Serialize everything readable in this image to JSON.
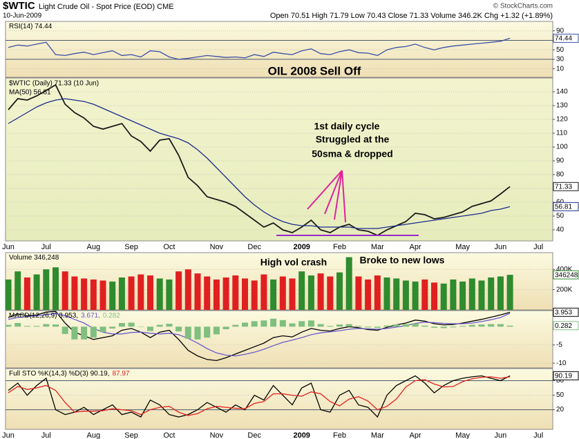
{
  "header": {
    "symbol": "$WTIC",
    "title": "Light Crude Oil - Spot Price (EOD) CME",
    "date": "10-Jun-2009",
    "stats": "Open 70.51 High 71.79 Low 70.43 Close 71.33 Volume 346.2K Chg +1.32 (+1.89%)",
    "credit": "© StockCharts.com"
  },
  "annotations": [
    {
      "text": "OIL 2008 Sell Off",
      "color": "#1530c8"
    },
    {
      "text": "1st daily cycle",
      "color": "#e0209a"
    },
    {
      "text": "Struggled at the",
      "color": "#9a28c8"
    },
    {
      "text": "50sma & dropped",
      "color": "#9a28c8"
    },
    {
      "text": "High vol crash",
      "color": "#e8175d"
    },
    {
      "text": "Broke to new lows",
      "color": "#e8175d"
    }
  ],
  "chart_data": [
    {
      "type": "line",
      "ylim": [
        -8,
        110
      ],
      "yticks": [
        10,
        30,
        50,
        70,
        90
      ],
      "highlight": [
        30,
        70
      ],
      "grid": true,
      "series": [
        {
          "name": "RSI(14) 74.44",
          "color": "#3a4fa8",
          "box": true,
          "values": [
            55,
            60,
            58,
            62,
            66,
            40,
            38,
            42,
            45,
            40,
            44,
            48,
            38,
            40,
            35,
            48,
            46,
            35,
            30,
            32,
            35,
            38,
            36,
            34,
            35,
            33,
            40,
            36,
            45,
            42,
            40,
            48,
            52,
            42,
            40,
            46,
            50,
            44,
            43,
            38,
            50,
            55,
            57,
            62,
            55,
            50,
            55,
            58,
            60,
            62,
            64,
            66,
            68,
            74.44,
            null,
            null,
            null
          ]
        }
      ]
    },
    {
      "type": "line",
      "ylim": [
        32,
        150
      ],
      "yticks": [
        40,
        50,
        60,
        70,
        80,
        90,
        100,
        110,
        120,
        130,
        140
      ],
      "grid": true,
      "legend_rows": true,
      "categories": [
        "Jun",
        null,
        null,
        null,
        "Jul",
        null,
        null,
        null,
        null,
        "Aug",
        null,
        null,
        null,
        "Sep",
        null,
        null,
        null,
        "Oct",
        null,
        null,
        null,
        null,
        "Nov",
        null,
        null,
        null,
        "Dec",
        null,
        null,
        null,
        null,
        "2009",
        null,
        null,
        null,
        "Feb",
        null,
        null,
        null,
        "Mar",
        null,
        null,
        null,
        "Apr",
        null,
        null,
        null,
        null,
        "May",
        null,
        null,
        null,
        "Jun",
        null,
        null,
        null,
        "Jul"
      ],
      "series": [
        {
          "name": "$WTIC (Daily) 71.33 (10 Jun)",
          "color": "#1a1a1a",
          "box": true,
          "values": [
            127,
            135,
            134,
            137,
            141,
            145,
            131,
            125,
            121,
            115,
            113,
            115,
            117,
            108,
            104,
            97,
            105,
            106,
            94,
            78,
            72,
            64,
            62,
            60,
            57,
            52,
            47,
            42,
            45,
            40,
            38,
            42,
            47,
            40,
            38,
            42,
            44,
            40,
            39,
            36,
            40,
            43,
            46,
            52,
            51,
            48,
            49,
            51,
            53,
            57,
            59,
            61,
            66,
            71.33,
            null,
            null,
            null
          ]
        },
        {
          "name": "MA(50) 56.81",
          "color": "#1c2a8c",
          "box": true,
          "values": [
            117,
            121,
            125,
            129,
            132,
            134,
            135,
            134,
            133,
            131,
            128,
            125,
            122,
            119,
            116,
            113,
            110,
            108,
            106,
            103,
            98,
            92,
            85,
            78,
            71,
            64,
            58,
            53,
            49,
            46,
            44,
            43,
            43,
            42,
            42,
            42,
            42,
            41,
            41,
            41,
            42,
            43,
            44,
            45,
            46,
            47,
            48,
            49,
            50,
            51,
            52,
            54,
            55,
            56.81,
            null,
            null,
            null
          ]
        }
      ]
    },
    {
      "type": "bar",
      "ylim": [
        0,
        565000
      ],
      "yticks": [
        {
          "value": 200000,
          "label": "200K"
        },
        {
          "value": 400000,
          "label": "400K"
        }
      ],
      "grid": true,
      "up_color": "#2e8b2e",
      "down_color": "#e02020",
      "series": [
        {
          "name": "Volume 346,248",
          "color": "#2e8b2e",
          "box": true,
          "values": [
            300000,
            380000,
            320000,
            350000,
            400000,
            420000,
            380000,
            330000,
            310000,
            300000,
            290000,
            280000,
            320000,
            330000,
            350000,
            340000,
            310000,
            300000,
            380000,
            400000,
            360000,
            330000,
            300000,
            320000,
            340000,
            310000,
            290000,
            350000,
            300000,
            330000,
            310000,
            380000,
            340000,
            360000,
            330000,
            370000,
            520000,
            330000,
            300000,
            340000,
            320000,
            310000,
            290000,
            280000,
            300000,
            270000,
            260000,
            300000,
            280000,
            310000,
            290000,
            320000,
            330000,
            346248,
            null,
            null,
            null
          ]
        }
      ]
    },
    {
      "type": "line",
      "ylim": [
        -11.3,
        4.4
      ],
      "yticks": [
        -10,
        -5
      ],
      "grid": true,
      "series": [
        {
          "name": "MACD(12,26,9) 3.953,",
          "color": "#000000",
          "box": true,
          "values": [
            2.5,
            3.5,
            3,
            3.2,
            4,
            4.2,
            1,
            -1.5,
            -2.5,
            -3.5,
            -3,
            -2.5,
            -1,
            -0.5,
            -1.5,
            -3,
            -1.5,
            -1,
            -3.5,
            -6.5,
            -8,
            -9,
            -9.3,
            -8.5,
            -7.5,
            -6.5,
            -5.5,
            -4.5,
            -3,
            -2.5,
            -2.8,
            -1.5,
            -0.5,
            -1,
            -1.2,
            -0.5,
            0,
            -0.3,
            -0.8,
            -1,
            -0.2,
            0.5,
            1,
            1.8,
            1.5,
            0.8,
            0.5,
            0.6,
            1,
            1.5,
            2,
            2.6,
            3.2,
            3.953,
            null,
            null,
            null
          ]
        },
        {
          "name": "3.671,",
          "color": "#6a5acd",
          "values": [
            2,
            2.5,
            2.8,
            3,
            3.3,
            3.6,
            3,
            2,
            1,
            -0.5,
            -1.5,
            -2,
            -2,
            -1.6,
            -1.5,
            -1.8,
            -2,
            -1.8,
            -2.2,
            -3.2,
            -4.5,
            -6,
            -7.2,
            -7.8,
            -8,
            -7.6,
            -7,
            -6.2,
            -5.2,
            -4.3,
            -3.7,
            -3,
            -2.2,
            -1.7,
            -1.4,
            -1.1,
            -0.7,
            -0.5,
            -0.6,
            -0.7,
            -0.5,
            -0.1,
            0.3,
            0.9,
            1.2,
            1.1,
            0.9,
            0.8,
            0.8,
            1,
            1.4,
            1.9,
            2.5,
            3.671,
            null,
            null,
            null
          ]
        },
        {
          "name": "0.282",
          "color": "#7fbf7f",
          "style": "histogram",
          "box": true,
          "values": [
            0.5,
            1,
            0.2,
            0.2,
            0.7,
            0.6,
            -2,
            -3.5,
            -3.5,
            -3,
            -1.5,
            -0.5,
            1,
            1.1,
            0,
            -1.2,
            0.5,
            0.8,
            -1.3,
            -3.3,
            -3.5,
            -3,
            -2.1,
            -0.7,
            0.5,
            1.1,
            1.5,
            1.7,
            2.2,
            1.8,
            0.9,
            1.5,
            1.7,
            0.7,
            0.2,
            0.6,
            0.7,
            0.2,
            -0.2,
            -0.3,
            0.3,
            0.6,
            0.7,
            0.9,
            0.3,
            -0.3,
            -0.4,
            -0.2,
            0.2,
            0.5,
            0.6,
            0.7,
            0.7,
            0.282,
            null,
            null,
            null
          ]
        }
      ]
    },
    {
      "type": "line",
      "ylim": [
        -20.5,
        105
      ],
      "yticks": [
        20,
        50,
        80
      ],
      "highlight": [
        20,
        80
      ],
      "grid": true,
      "categories": [
        "Jun",
        null,
        null,
        null,
        "Jul",
        null,
        null,
        null,
        null,
        "Aug",
        null,
        null,
        null,
        "Sep",
        null,
        null,
        null,
        "Oct",
        null,
        null,
        null,
        null,
        "Nov",
        null,
        null,
        null,
        "Dec",
        null,
        null,
        null,
        null,
        "2009",
        null,
        null,
        null,
        "Feb",
        null,
        null,
        null,
        "Mar",
        null,
        null,
        null,
        "Apr",
        null,
        null,
        null,
        null,
        "May",
        null,
        null,
        null,
        "Jun",
        null,
        null,
        null,
        "Jul"
      ],
      "series": [
        {
          "name": "Full STO %K(14,3) %D(3) 90.19,",
          "color": "#000000",
          "box": true,
          "values": [
            60,
            75,
            50,
            70,
            85,
            20,
            10,
            15,
            25,
            10,
            20,
            30,
            10,
            15,
            5,
            40,
            30,
            10,
            5,
            10,
            20,
            35,
            25,
            15,
            30,
            20,
            50,
            40,
            70,
            50,
            30,
            65,
            75,
            20,
            15,
            50,
            60,
            30,
            25,
            5,
            50,
            70,
            80,
            90,
            75,
            55,
            70,
            80,
            85,
            88,
            90,
            85,
            80,
            90.19,
            null,
            null,
            null
          ]
        },
        {
          "name": "87.97",
          "color": "#e02020",
          "values": [
            55,
            68,
            62,
            65,
            70,
            60,
            35,
            15,
            17,
            17,
            18,
            22,
            20,
            18,
            10,
            20,
            25,
            27,
            15,
            8,
            12,
            22,
            27,
            25,
            23,
            22,
            33,
            37,
            53,
            53,
            50,
            48,
            57,
            53,
            37,
            28,
            42,
            47,
            38,
            20,
            27,
            42,
            67,
            80,
            82,
            73,
            67,
            68,
            78,
            84,
            87,
            88,
            85,
            87.97,
            null,
            null,
            null
          ]
        }
      ]
    }
  ]
}
